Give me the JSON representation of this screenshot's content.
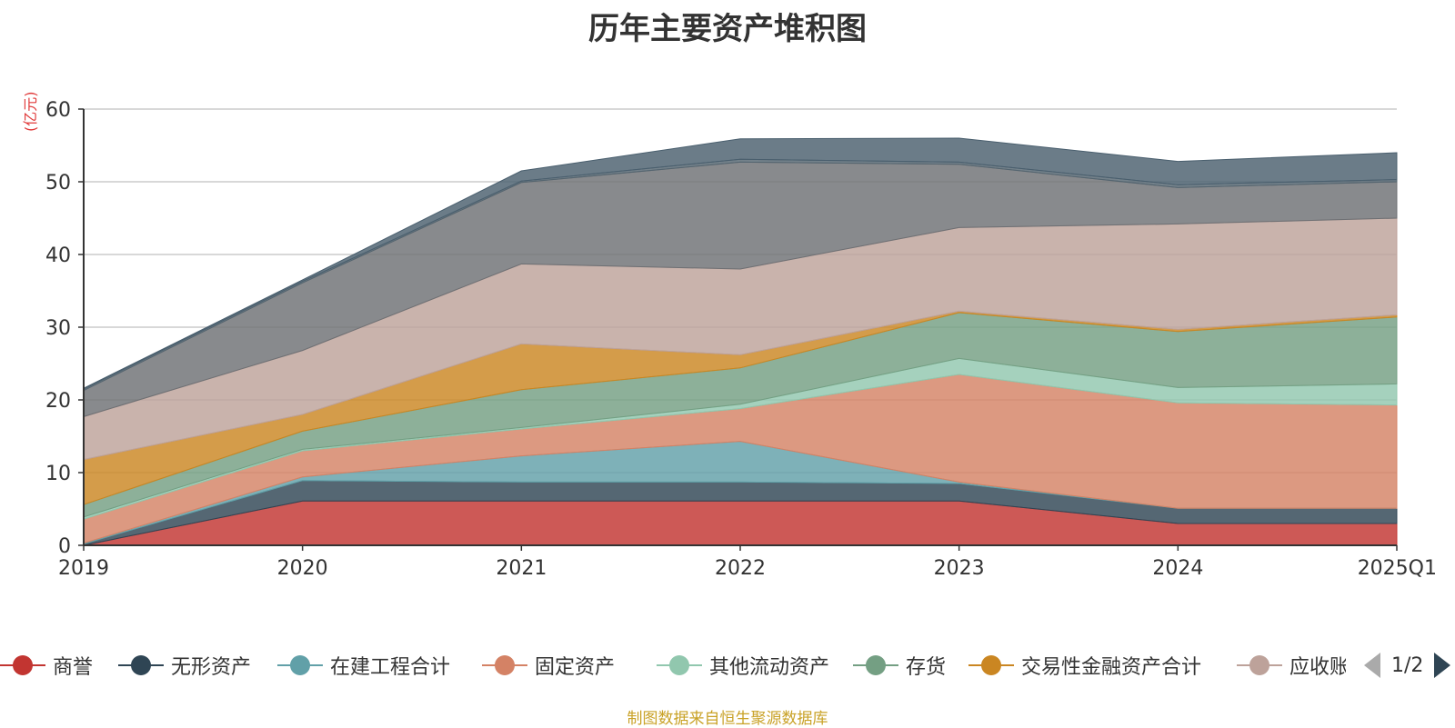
{
  "title": "历年主要资产堆积图",
  "unit": "(亿元)",
  "source": "制图数据来自恒生聚源数据库",
  "pager": {
    "text": "1/2"
  },
  "colors": {
    "axis": "#333333",
    "grid": "#cccccc",
    "unit": "#e03a3a",
    "source": "#c9a227"
  },
  "legend": [
    {
      "name": "商誉",
      "color": "#c23531",
      "icon": "circle-marker-icon"
    },
    {
      "name": "无形资产",
      "color": "#2f4554",
      "icon": "circle-marker-icon"
    },
    {
      "name": "在建工程合计",
      "color": "#61a0a8",
      "icon": "circle-marker-icon"
    },
    {
      "name": "固定资产",
      "color": "#d48265",
      "icon": "circle-marker-icon"
    },
    {
      "name": "其他流动资产",
      "color": "#91c7ae",
      "icon": "circle-marker-icon"
    },
    {
      "name": "存货",
      "color": "#749f83",
      "icon": "circle-marker-icon"
    },
    {
      "name": "交易性金融资产合计",
      "color": "#ca8622",
      "icon": "circle-marker-icon"
    },
    {
      "name": "应收账款",
      "color": "#bda29a",
      "icon": "circle-marker-icon"
    }
  ],
  "chart_data": {
    "type": "area",
    "stacked": true,
    "x": [
      "2019",
      "2020",
      "2021",
      "2022",
      "2023",
      "2024",
      "2025Q1"
    ],
    "ylim": [
      0,
      60
    ],
    "yticks": [
      0,
      10,
      20,
      30,
      40,
      50,
      60
    ],
    "grid": true,
    "legend_position": "bottom",
    "series": [
      {
        "name": "商誉",
        "color": "#c23531",
        "values": [
          0,
          6.1,
          6.1,
          6.1,
          6.1,
          3.0,
          3.0
        ]
      },
      {
        "name": "无形资产",
        "color": "#2f4554",
        "values": [
          0.2,
          2.8,
          2.6,
          2.6,
          2.4,
          2.1,
          2.1
        ]
      },
      {
        "name": "在建工程合计",
        "color": "#61a0a8",
        "values": [
          0.1,
          0.5,
          3.6,
          5.6,
          0.2,
          0,
          0
        ]
      },
      {
        "name": "固定资产",
        "color": "#d48265",
        "values": [
          3.3,
          3.6,
          3.7,
          4.5,
          14.8,
          14.5,
          14.2
        ]
      },
      {
        "name": "其他流动资产",
        "color": "#91c7ae",
        "values": [
          0.3,
          0.2,
          0.2,
          0.6,
          2.2,
          2.1,
          2.9
        ]
      },
      {
        "name": "存货",
        "color": "#749f83",
        "values": [
          1.7,
          2.5,
          5.2,
          5.0,
          6.3,
          7.7,
          9.2
        ]
      },
      {
        "name": "交易性金融资产合计",
        "color": "#ca8622",
        "values": [
          6.2,
          2.3,
          6.3,
          1.8,
          0.2,
          0.3,
          0.3
        ]
      },
      {
        "name": "应收账款",
        "color": "#bda29a",
        "values": [
          5.9,
          8.8,
          11.0,
          11.8,
          11.5,
          14.5,
          13.3
        ]
      },
      {
        "name": "",
        "color": "#6e7074",
        "values": [
          3.6,
          9.3,
          11.2,
          14.7,
          8.7,
          5.0,
          5.0
        ]
      },
      {
        "name": "",
        "color": "#546570",
        "values": [
          0.2,
          0.2,
          0.2,
          0.4,
          0.3,
          0.4,
          0.3
        ]
      },
      {
        "name": "",
        "color": "#4a5f6e",
        "values": [
          0.1,
          0.2,
          1.4,
          2.8,
          3.3,
          3.2,
          3.7
        ]
      }
    ]
  }
}
